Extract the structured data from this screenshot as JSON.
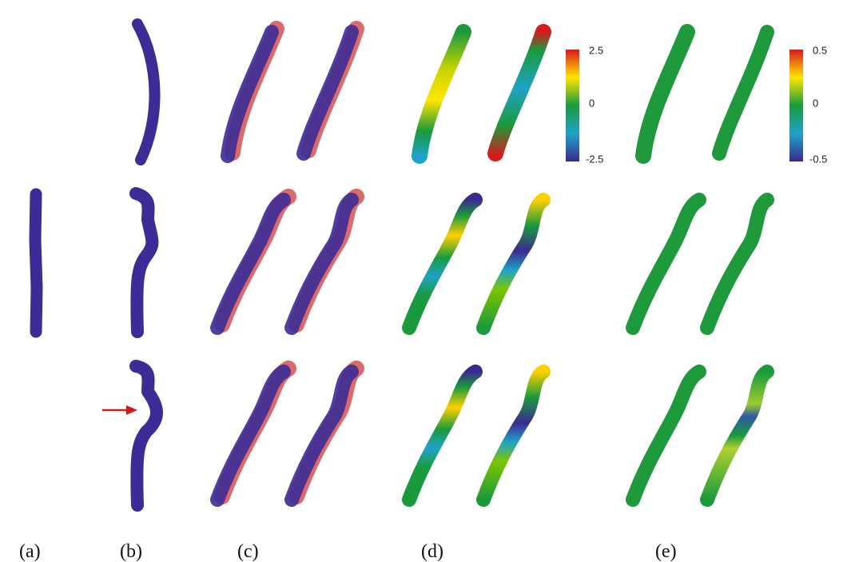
{
  "panel_labels": [
    "(a)",
    "(b)",
    "(c)",
    "(d)",
    "(e)"
  ],
  "colorbars": [
    {
      "ticks": [
        "2.5",
        "0",
        "-2.5"
      ]
    },
    {
      "ticks": [
        "0.5",
        "0",
        "-0.5"
      ]
    }
  ]
}
